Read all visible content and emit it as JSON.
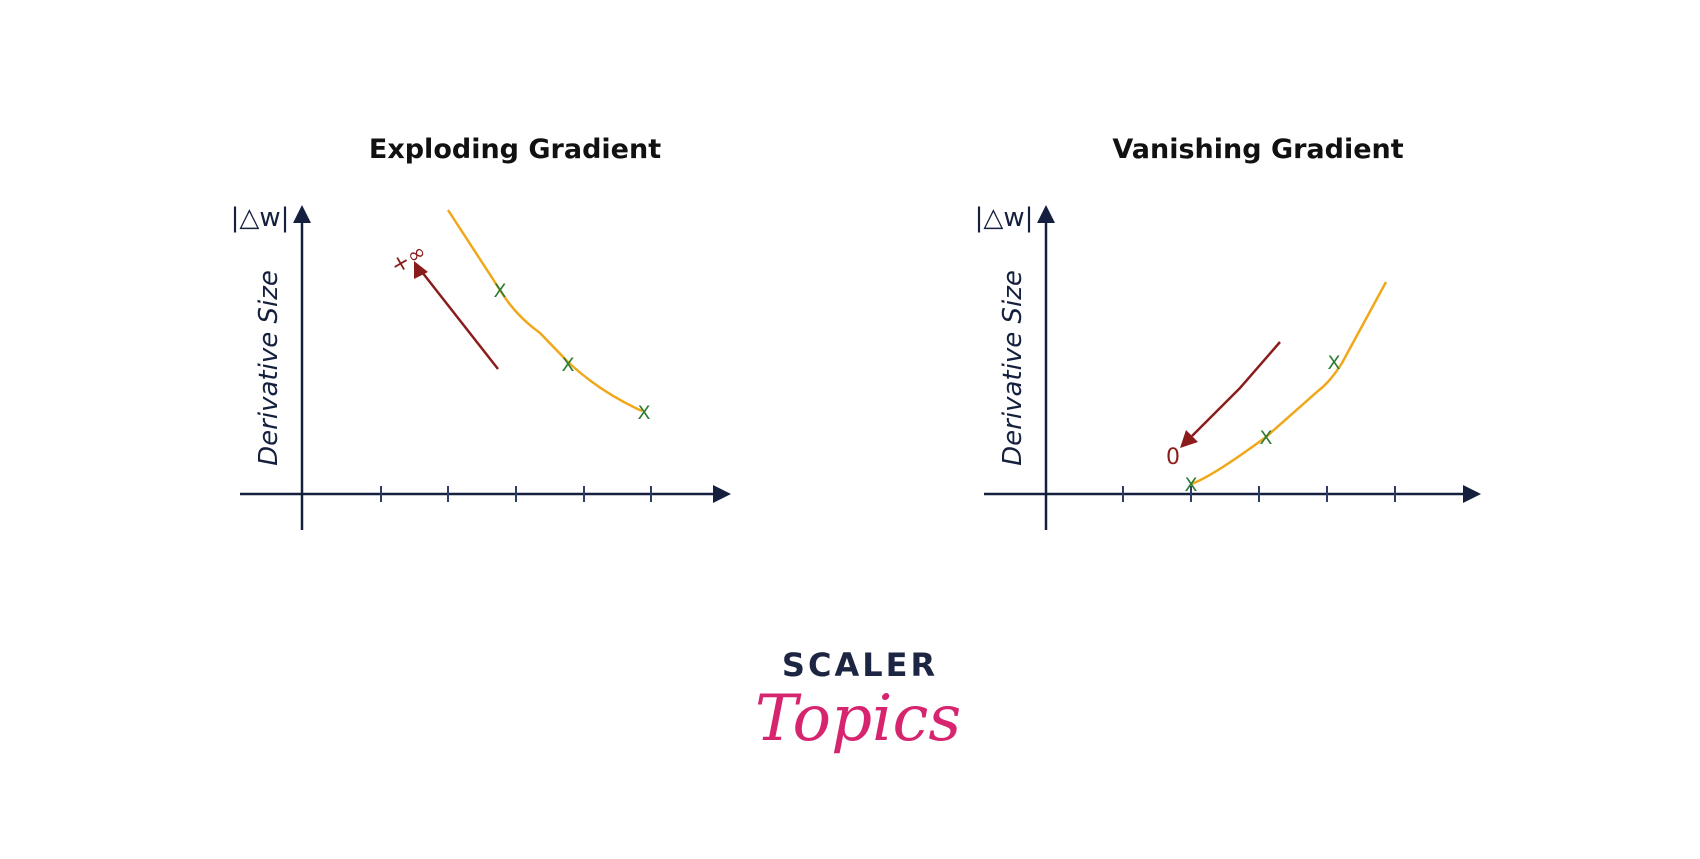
{
  "panels": [
    {
      "title": "Exploding Gradient",
      "y_axis_label": "Derivative Size",
      "magnitude_label": "|△w|",
      "point_marker": "X",
      "limit_label": "+∞",
      "arrow_direction": "up-left",
      "colors": {
        "curve": "#f0a81a",
        "marker": "#2e7d32",
        "arrow": "#8b1c1c",
        "axis": "#14203d"
      }
    },
    {
      "title": "Vanishing Gradient",
      "y_axis_label": "Derivative Size",
      "magnitude_label": "|△w|",
      "point_marker": "X",
      "limit_label": "0",
      "arrow_direction": "down-left",
      "colors": {
        "curve": "#f0a81a",
        "marker": "#2e7d32",
        "arrow": "#8b1c1c",
        "axis": "#14203d"
      }
    }
  ],
  "logo": {
    "top": "SCALER",
    "bottom": "Topics",
    "colors": {
      "top": "#1c2541",
      "bottom": "#d6246e"
    }
  }
}
